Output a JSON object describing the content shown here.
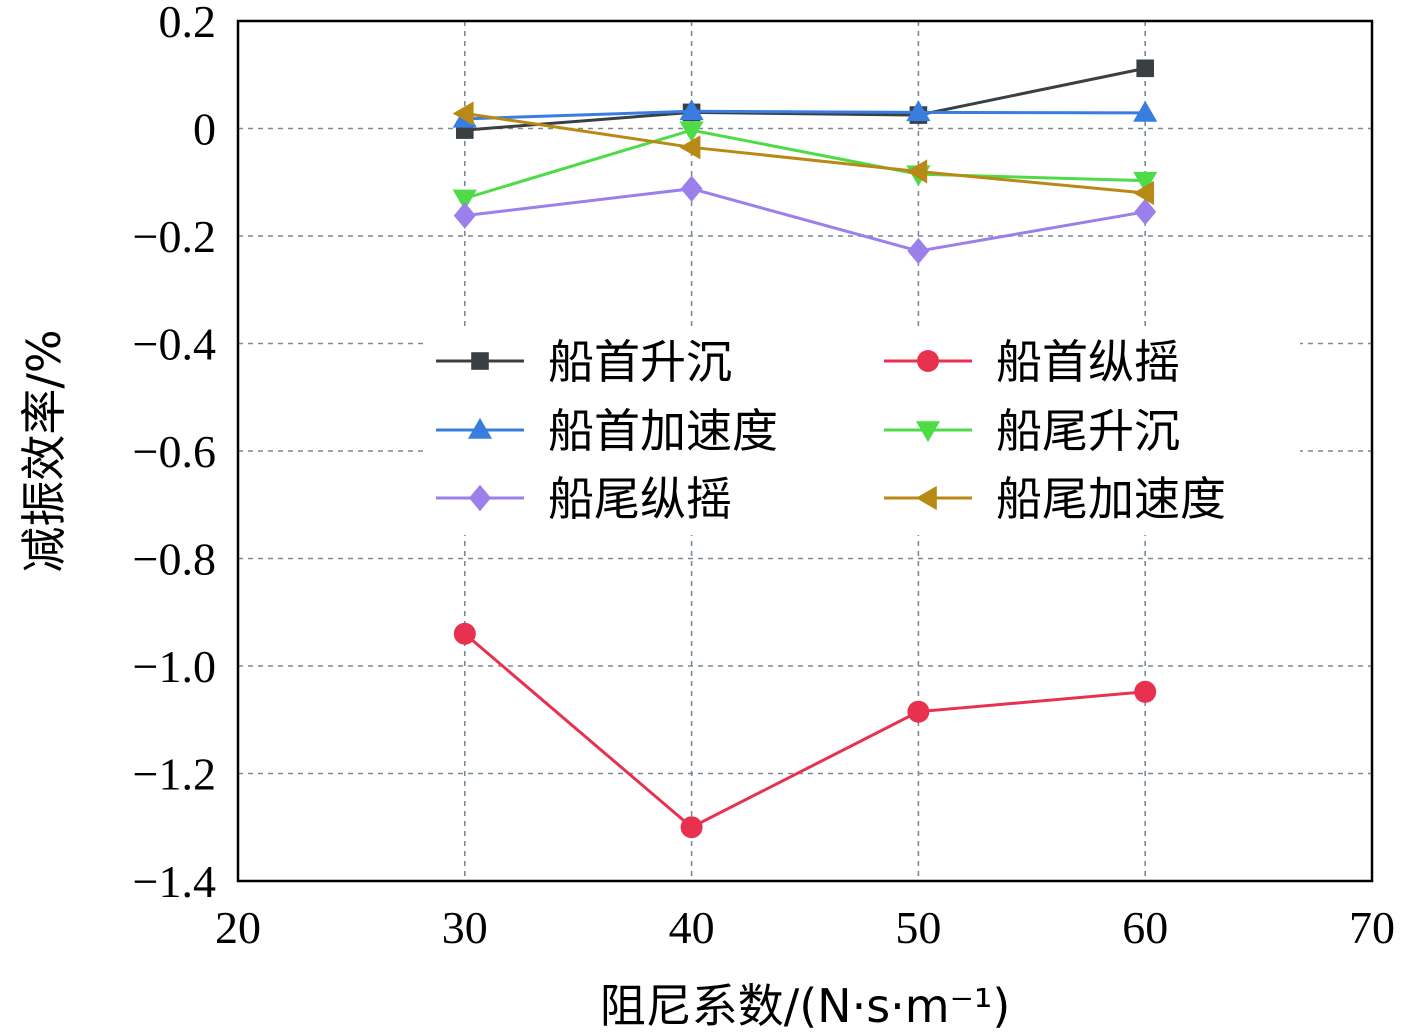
{
  "chart_data": {
    "type": "line",
    "title": "",
    "xlabel": "阻尼系数/(N·s·m⁻¹)",
    "ylabel": "减振效率/%",
    "xlim": [
      20,
      70
    ],
    "ylim": [
      -1.4,
      0.2
    ],
    "xticks": [
      20,
      30,
      40,
      50,
      60,
      70
    ],
    "yticks": [
      0.2,
      0,
      -0.2,
      -0.4,
      -0.6,
      -0.8,
      -1.0,
      -1.2,
      -1.4
    ],
    "xtick_labels": [
      "20",
      "30",
      "40",
      "50",
      "60",
      "70"
    ],
    "ytick_labels": [
      "0.2",
      "0",
      "−0.2",
      "−0.4",
      "−0.6",
      "−0.8",
      "−1.0",
      "−1.2",
      "−1.4"
    ],
    "grid": true,
    "legend_position": "center",
    "x": [
      30,
      40,
      50,
      60
    ],
    "series": [
      {
        "name": "船首升沉",
        "color": "#3a3f44",
        "marker": "square",
        "values": [
          -0.003,
          0.03,
          0.025,
          0.112
        ]
      },
      {
        "name": "船首纵摇",
        "color": "#e8314f",
        "marker": "circle",
        "values": [
          -0.94,
          -1.3,
          -1.085,
          -1.048
        ]
      },
      {
        "name": "船首加速度",
        "color": "#3a7de0",
        "marker": "triangle-up",
        "values": [
          0.018,
          0.032,
          0.03,
          0.029
        ]
      },
      {
        "name": "船尾升沉",
        "color": "#4ddc48",
        "marker": "triangle-down",
        "values": [
          -0.13,
          -0.003,
          -0.085,
          -0.097
        ]
      },
      {
        "name": "船尾纵摇",
        "color": "#9b7fea",
        "marker": "diamond",
        "values": [
          -0.162,
          -0.112,
          -0.228,
          -0.155
        ]
      },
      {
        "name": "船尾加速度",
        "color": "#b88a15",
        "marker": "triangle-left",
        "values": [
          0.028,
          -0.035,
          -0.08,
          -0.12
        ]
      }
    ]
  }
}
